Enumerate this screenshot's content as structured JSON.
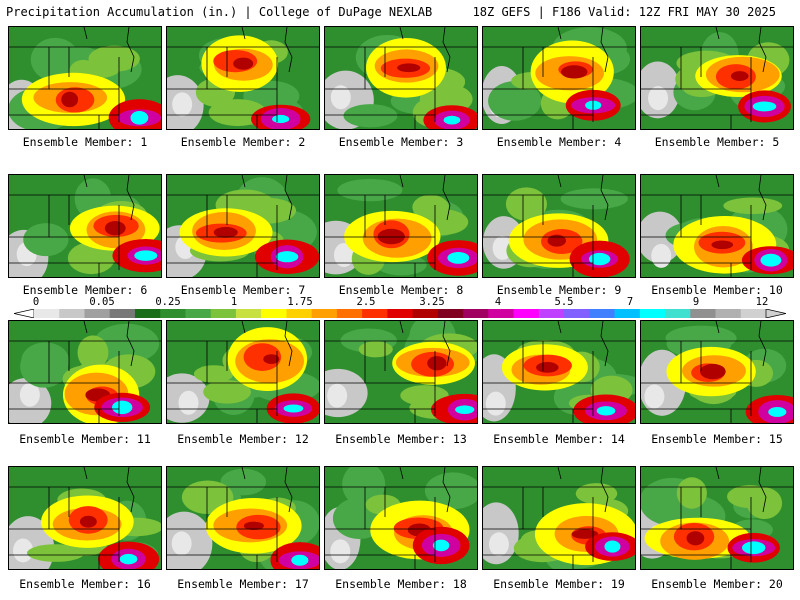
{
  "header": {
    "title": "Precipitation Accumulation (in.) | College of DuPage NEXLAB",
    "run_info": "18Z GEFS | F186 Valid: 12Z FRI MAY 30 2025"
  },
  "panels": [
    {
      "label": "Ensemble Member: 1"
    },
    {
      "label": "Ensemble Member: 2"
    },
    {
      "label": "Ensemble Member: 3"
    },
    {
      "label": "Ensemble Member: 4"
    },
    {
      "label": "Ensemble Member: 5"
    },
    {
      "label": "Ensemble Member: 6"
    },
    {
      "label": "Ensemble Member: 7"
    },
    {
      "label": "Ensemble Member: 8"
    },
    {
      "label": "Ensemble Member: 9"
    },
    {
      "label": "Ensemble Member: 10"
    },
    {
      "label": "Ensemble Member: 11"
    },
    {
      "label": "Ensemble Member: 12"
    },
    {
      "label": "Ensemble Member: 13"
    },
    {
      "label": "Ensemble Member: 14"
    },
    {
      "label": "Ensemble Member: 15"
    },
    {
      "label": "Ensemble Member: 16"
    },
    {
      "label": "Ensemble Member: 17"
    },
    {
      "label": "Ensemble Member: 18"
    },
    {
      "label": "Ensemble Member: 19"
    },
    {
      "label": "Ensemble Member: 20"
    }
  ],
  "colorbar": {
    "tick_labels": [
      "0",
      "0.05",
      "0.25",
      "1",
      "1.75",
      "2.5",
      "3.25",
      "4",
      "5.5",
      "7",
      "9",
      "12"
    ],
    "colors": [
      "#e8e8e8",
      "#c8c8c8",
      "#a0a0a0",
      "#787878",
      "#1a6e1a",
      "#2f8f2f",
      "#48a848",
      "#7cc23a",
      "#c8e040",
      "#ffff00",
      "#ffd000",
      "#ffa000",
      "#ff7000",
      "#ff3000",
      "#e00000",
      "#b00000",
      "#800020",
      "#a00060",
      "#d000a0",
      "#ff00ff",
      "#c040ff",
      "#8060ff",
      "#4080ff",
      "#00c0ff",
      "#00ffff",
      "#40e0d0",
      "#909090",
      "#b0b0b0",
      "#d0d0d0"
    ]
  }
}
